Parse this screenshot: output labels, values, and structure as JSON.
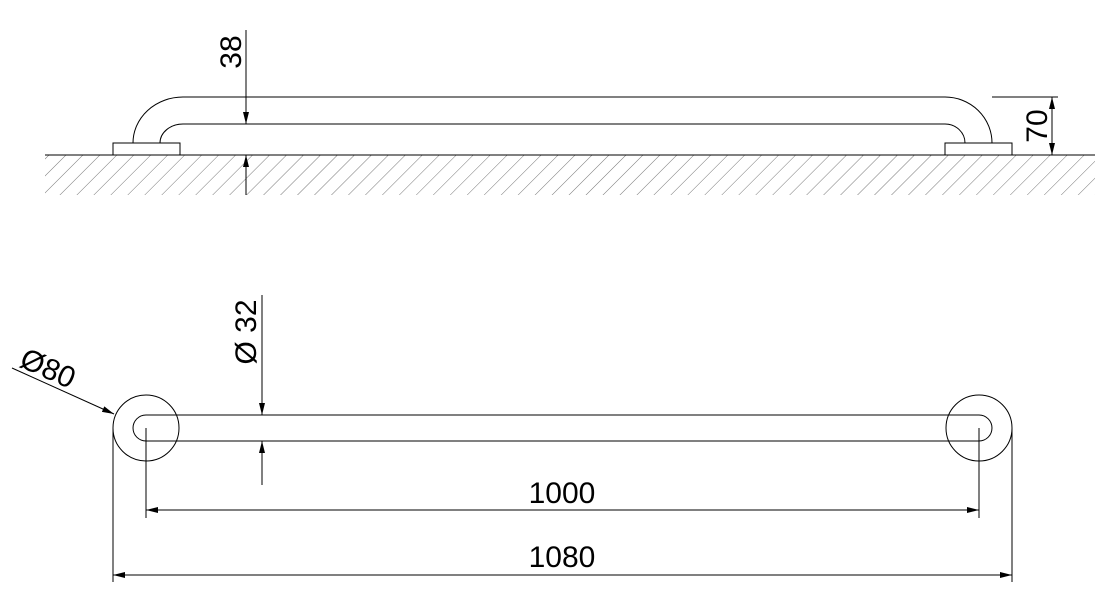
{
  "side_view": {
    "dim_tube_height": "38",
    "dim_total_height": "70"
  },
  "top_view": {
    "dim_tube_diameter": "Ø 32",
    "dim_flange_diameter": "Ø80",
    "dim_center_length": "1000",
    "dim_total_length": "1080"
  },
  "colors": {
    "line": "#000000",
    "background": "#ffffff"
  }
}
